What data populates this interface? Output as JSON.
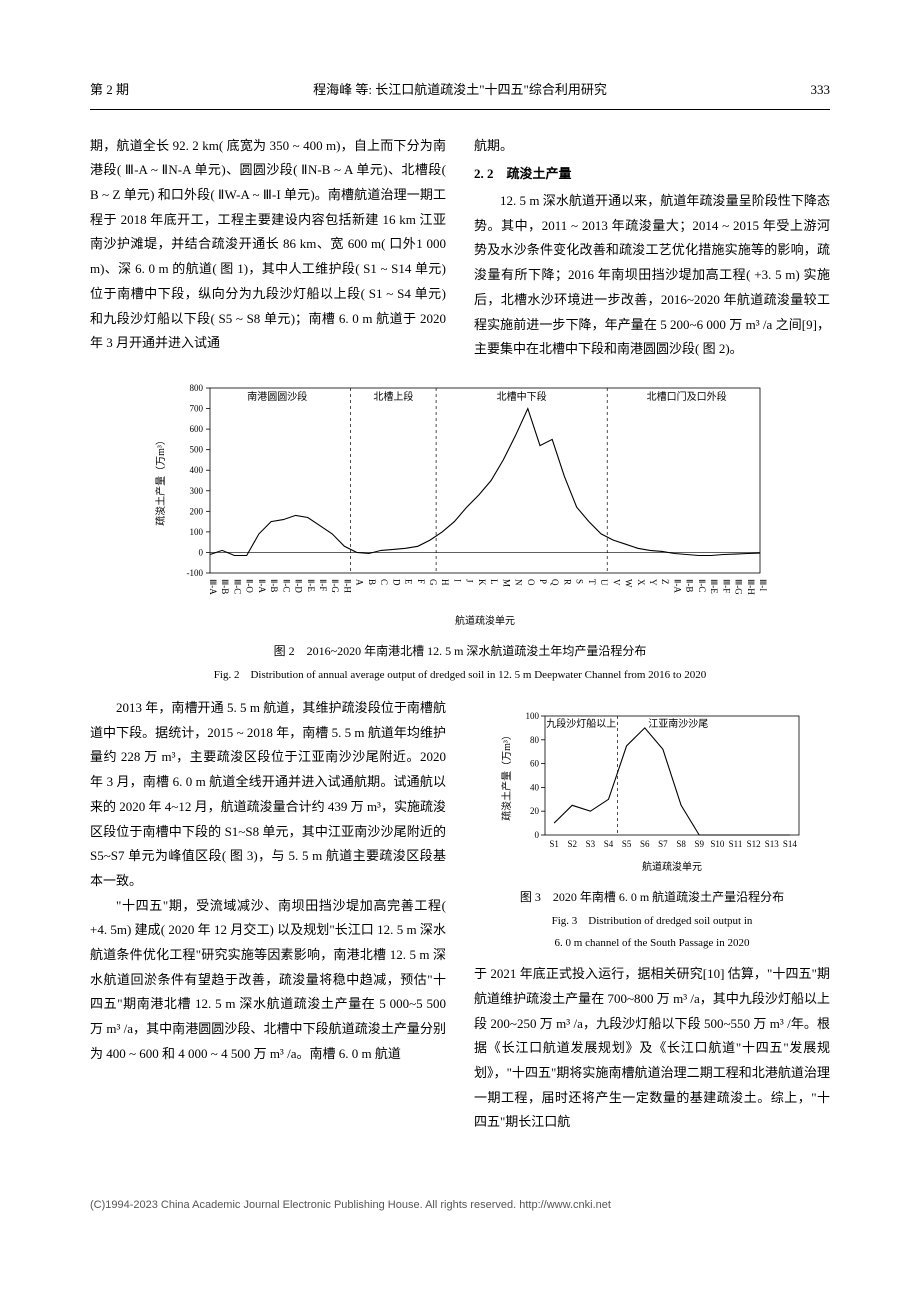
{
  "header": {
    "issue": "第 2 期",
    "running": "程海峰  等: 长江口航道疏浚土\"十四五\"综合利用研究",
    "page": "333"
  },
  "section22_title": "2. 2　疏浚土产量",
  "para_top_left": "期，航道全长 92. 2 km( 底宽为 350 ~ 400 m)，自上而下分为南港段( Ⅲ-A ~ ⅡN-A 单元)、圆圆沙段( ⅡN-B ~ A 单元)、北槽段( B ~ Z 单元) 和口外段( ⅡW-A ~ Ⅲ-I 单元)。南槽航道治理一期工程于 2018 年底开工，工程主要建设内容包括新建 16 km 江亚南沙护滩堤，并结合疏浚开通长 86 km、宽 600 m( 口外1 000 m)、深 6. 0 m 的航道( 图 1)，其中人工维护段( S1 ~ S14 单元) 位于南槽中下段，纵向分为九段沙灯船以上段( S1 ~ S4 单元) 和九段沙灯船以下段( S5 ~ S8 单元)；南槽 6. 0 m 航道于 2020 年 3 月开通并进入试通",
  "para_top_right_1": "航期。",
  "para_top_right_2": "12. 5 m 深水航道开通以来，航道年疏浚量呈阶段性下降态势。其中，2011 ~ 2013 年疏浚量大；2014 ~ 2015 年受上游河势及水沙条件变化改善和疏浚工艺优化措施实施等的影响，疏浚量有所下降；2016 年南坝田挡沙堤加高工程( +3. 5 m) 实施后，北槽水沙环境进一步改善，2016~2020 年航道疏浚量较工程实施前进一步下降，年产量在 5 200~6 000 万 m³ /a 之间[9]，主要集中在北槽中下段和南港圆圆沙段( 图 2)。",
  "fig2": {
    "caption_cn": "图 2　2016~2020 年南港北槽 12. 5 m 深水航道疏浚土年均产量沿程分布",
    "caption_en": "Fig. 2　Distribution of annual average output of dredged soil in 12. 5 m Deepwater Channel from 2016 to 2020",
    "ylabel": "疏浚土产量（万m³）",
    "xlabel": "航道疏浚单元",
    "ylim": [
      -100,
      800
    ],
    "ytick_step": 100,
    "background_color": "#ffffff",
    "line_color": "#000000",
    "section_labels": [
      "南港圆圆沙段",
      "北槽上段",
      "北槽中下段",
      "北槽口门及口外段"
    ],
    "section_divs": [
      12,
      19,
      33
    ],
    "x_categories": [
      "Ⅲ-A",
      "Ⅲ-B",
      "Ⅲ-C",
      "Ⅱ-O",
      "Ⅱ-A",
      "Ⅱ-B",
      "Ⅱ-C",
      "Ⅱ-D",
      "Ⅱ-E",
      "Ⅱ-F",
      "Ⅱ-G",
      "Ⅱ-H",
      "A",
      "B",
      "C",
      "D",
      "E",
      "F",
      "G",
      "H",
      "I",
      "J",
      "K",
      "L",
      "M",
      "N",
      "O",
      "P",
      "Q",
      "R",
      "S",
      "T",
      "U",
      "V",
      "W",
      "X",
      "Y",
      "Z",
      "Ⅱ-A",
      "Ⅱ-B",
      "Ⅱ-C",
      "Ⅲ-E",
      "Ⅲ-F",
      "Ⅲ-G",
      "Ⅲ-H",
      "Ⅲ-I"
    ],
    "values": [
      -10,
      10,
      -15,
      -15,
      90,
      150,
      160,
      180,
      170,
      130,
      90,
      30,
      0,
      -5,
      10,
      15,
      20,
      30,
      60,
      100,
      150,
      220,
      280,
      350,
      450,
      570,
      700,
      520,
      550,
      370,
      220,
      150,
      90,
      60,
      40,
      20,
      10,
      5,
      -5,
      -10,
      -15,
      -15,
      -10,
      -8,
      -5,
      -3
    ]
  },
  "para_mid_left_1": "2013 年，南槽开通 5. 5 m 航道，其维护疏浚段位于南槽航道中下段。据统计，2015 ~ 2018 年，南槽 5. 5 m 航道年均维护量约 228 万 m³，主要疏浚区段位于江亚南沙沙尾附近。2020 年 3 月，南槽 6. 0 m 航道全线开通并进入试通航期。试通航以来的 2020 年 4~12 月，航道疏浚量合计约 439 万 m³，实施疏浚区段位于南槽中下段的 S1~S8 单元，其中江亚南沙沙尾附近的 S5~S7 单元为峰值区段( 图 3)，与 5. 5 m 航道主要疏浚区段基本一致。",
  "para_mid_left_2": "\"十四五\"期，受流域减沙、南坝田挡沙堤加高完善工程( +4. 5m) 建成( 2020 年 12 月交工) 以及规划\"长江口 12. 5 m 深水航道条件优化工程\"研究实施等因素影响，南港北槽 12. 5 m 深水航道回淤条件有望趋于改善，疏浚量将稳中趋减，预估\"十四五\"期南港北槽 12. 5 m 深水航道疏浚土产量在 5 000~5 500 万 m³ /a，其中南港圆圆沙段、北槽中下段航道疏浚土产量分别为 400 ~ 600 和 4 000 ~ 4 500 万 m³ /a。南槽 6. 0 m 航道",
  "fig3": {
    "caption_cn": "图 3　2020 年南槽 6. 0 m 航道疏浚土产量沿程分布",
    "caption_en_l1": "Fig. 3　Distribution of dredged soil output in",
    "caption_en_l2": "6. 0 m channel of the South Passage in 2020",
    "ylabel": "疏浚土产量（万m³）",
    "xlabel": "航道疏浚单元",
    "ylim": [
      0,
      100
    ],
    "ytick_step": 20,
    "line_color": "#000000",
    "section_labels": [
      "九段沙灯船以上",
      "江亚南沙沙尾"
    ],
    "section_div": 4,
    "x_categories": [
      "S1",
      "S2",
      "S3",
      "S4",
      "S5",
      "S6",
      "S7",
      "S8",
      "S9",
      "S10",
      "S11",
      "S12",
      "S13",
      "S14"
    ],
    "values": [
      10,
      25,
      20,
      30,
      75,
      90,
      72,
      25,
      0,
      0,
      0,
      0,
      0,
      0
    ]
  },
  "para_mid_right": "于 2021 年底正式投入运行，据相关研究[10] 估算，\"十四五\"期航道维护疏浚土产量在 700~800 万 m³ /a，其中九段沙灯船以上段 200~250 万 m³ /a，九段沙灯船以下段 500~550 万 m³ /年。根据《长江口航道发展规划》及《长江口航道\"十四五\"发展规划》，\"十四五\"期将实施南槽航道治理二期工程和北港航道治理一期工程，届时还将产生一定数量的基建疏浚土。综上，\"十四五\"期长江口航",
  "footer": "(C)1994-2023 China Academic Journal Electronic Publishing House. All rights reserved.    http://www.cnki.net"
}
